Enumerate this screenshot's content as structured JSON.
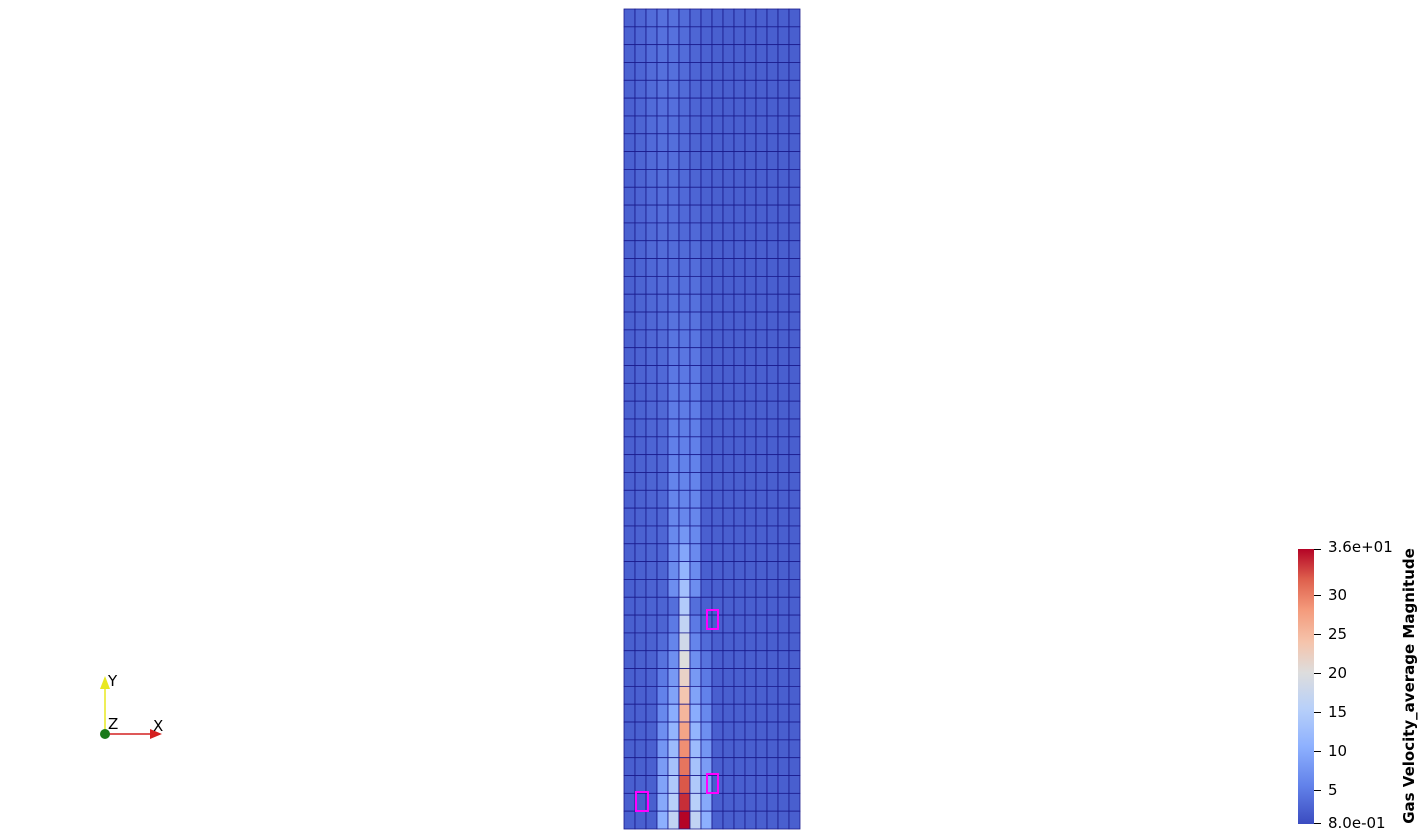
{
  "view": {
    "background": "#ffffff",
    "mesh": {
      "columns": 16,
      "rows": 46,
      "edge_color": "#1a1a8c",
      "base_color": "#3b4cc0",
      "field_name": "Gas Velocity_average Magnitude"
    },
    "highlights": {
      "color": "#ff00ff",
      "count": 3
    }
  },
  "colorbar": {
    "title": "Gas Velocity_average Magnitude",
    "max_label": "3.6e+01",
    "min_label": "8.0e-01",
    "tick_labels": [
      "30",
      "25",
      "20",
      "15",
      "10",
      "5"
    ],
    "range": [
      0.8,
      36
    ],
    "colormap": "Cool to Warm"
  },
  "axes": {
    "x_label": "X",
    "y_label": "Y",
    "z_label": "Z",
    "x_color": "#d42020",
    "y_color": "#e8e820",
    "z_color": "#1a7a1a"
  }
}
